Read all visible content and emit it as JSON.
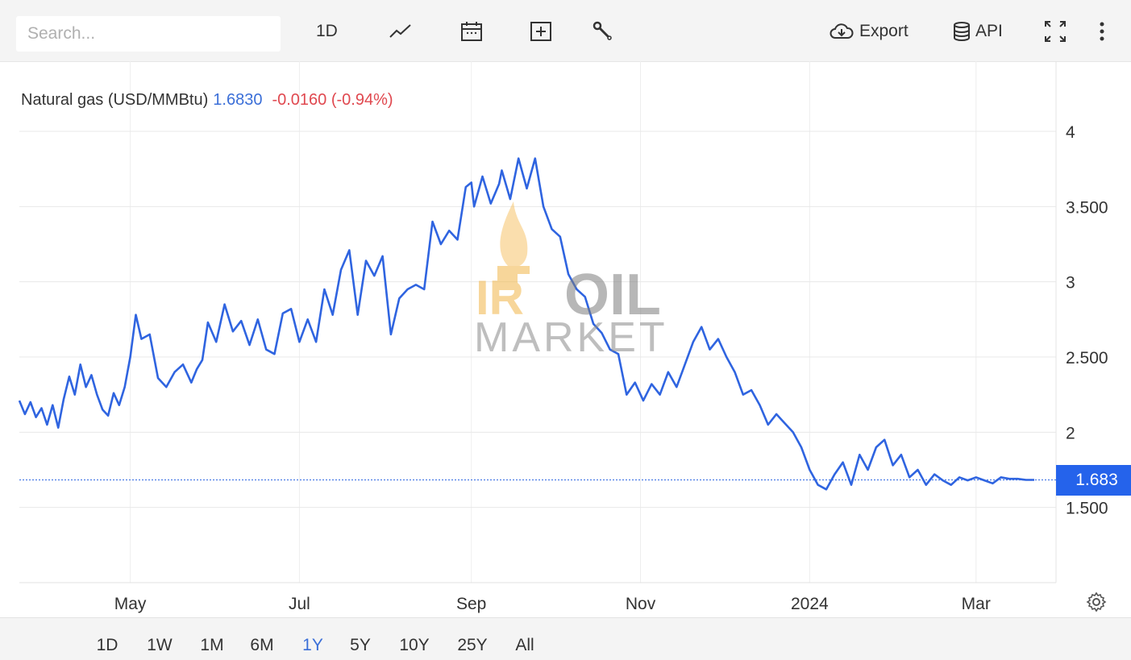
{
  "toolbar": {
    "search_placeholder": "Search...",
    "interval_label": "1D",
    "export_label": "Export",
    "api_label": "API",
    "icons": [
      "line-chart-icon",
      "calendar-icon",
      "plus-box-icon",
      "wrench-icon",
      "cloud-download-icon",
      "database-icon",
      "fullscreen-icon",
      "more-vertical-icon"
    ]
  },
  "legend": {
    "name": "Natural gas (USD/MMBtu)",
    "value": "1.6830",
    "change": "-0.0160 (-0.94%)"
  },
  "watermark": {
    "line1": "OIL",
    "line2": "MARKET"
  },
  "last_price_badge": "1.683",
  "ranges": {
    "items": [
      "1D",
      "1W",
      "1M",
      "6M",
      "1Y",
      "5Y",
      "10Y",
      "25Y",
      "All"
    ],
    "active": "1Y"
  },
  "colors": {
    "line": "#2f64e0",
    "positive": "#3b6fd8",
    "negative": "#e0484f",
    "badge": "#2563eb"
  },
  "chart_data": {
    "type": "line",
    "title": "Natural gas (USD/MMBtu)",
    "xlabel": "",
    "ylabel": "",
    "x_tick_labels": [
      "May",
      "Jul",
      "Sep",
      "Nov",
      "2024",
      "Mar"
    ],
    "y_tick_labels": [
      "1.500",
      "2",
      "2.500",
      "3",
      "3.500",
      "4"
    ],
    "y_ticks": [
      1.5,
      2,
      2.5,
      3,
      3.5,
      4
    ],
    "ylim": [
      1.0,
      4.0
    ],
    "xlim": [
      "2023-03-22",
      "2024-03-22"
    ],
    "grid": true,
    "last_value": 1.683,
    "series": [
      {
        "name": "Natural gas (USD/MMBtu)",
        "x": [
          "2023-03-22",
          "2023-03-24",
          "2023-03-26",
          "2023-03-28",
          "2023-03-30",
          "2023-04-01",
          "2023-04-03",
          "2023-04-05",
          "2023-04-07",
          "2023-04-09",
          "2023-04-11",
          "2023-04-13",
          "2023-04-15",
          "2023-04-17",
          "2023-04-19",
          "2023-04-21",
          "2023-04-23",
          "2023-04-25",
          "2023-04-27",
          "2023-04-29",
          "2023-05-01",
          "2023-05-03",
          "2023-05-05",
          "2023-05-08",
          "2023-05-11",
          "2023-05-14",
          "2023-05-17",
          "2023-05-20",
          "2023-05-23",
          "2023-05-25",
          "2023-05-27",
          "2023-05-29",
          "2023-06-01",
          "2023-06-04",
          "2023-06-07",
          "2023-06-10",
          "2023-06-13",
          "2023-06-16",
          "2023-06-19",
          "2023-06-22",
          "2023-06-25",
          "2023-06-28",
          "2023-07-01",
          "2023-07-04",
          "2023-07-07",
          "2023-07-10",
          "2023-07-13",
          "2023-07-16",
          "2023-07-19",
          "2023-07-22",
          "2023-07-25",
          "2023-07-28",
          "2023-07-31",
          "2023-08-03",
          "2023-08-06",
          "2023-08-09",
          "2023-08-12",
          "2023-08-15",
          "2023-08-18",
          "2023-08-21",
          "2023-08-24",
          "2023-08-27",
          "2023-08-30",
          "2023-09-01",
          "2023-09-02",
          "2023-09-05",
          "2023-09-08",
          "2023-09-11",
          "2023-09-12",
          "2023-09-15",
          "2023-09-18",
          "2023-09-21",
          "2023-09-24",
          "2023-09-27",
          "2023-09-30",
          "2023-10-03",
          "2023-10-06",
          "2023-10-09",
          "2023-10-12",
          "2023-10-15",
          "2023-10-18",
          "2023-10-21",
          "2023-10-24",
          "2023-10-27",
          "2023-10-30",
          "2023-11-02",
          "2023-11-05",
          "2023-11-08",
          "2023-11-11",
          "2023-11-14",
          "2023-11-17",
          "2023-11-20",
          "2023-11-23",
          "2023-11-26",
          "2023-11-29",
          "2023-12-02",
          "2023-12-05",
          "2023-12-08",
          "2023-12-11",
          "2023-12-14",
          "2023-12-17",
          "2023-12-20",
          "2023-12-23",
          "2023-12-26",
          "2023-12-29",
          "2024-01-01",
          "2024-01-04",
          "2024-01-07",
          "2024-01-10",
          "2024-01-13",
          "2024-01-16",
          "2024-01-19",
          "2024-01-22",
          "2024-01-25",
          "2024-01-28",
          "2024-01-31",
          "2024-02-03",
          "2024-02-06",
          "2024-02-09",
          "2024-02-12",
          "2024-02-15",
          "2024-02-18",
          "2024-02-21",
          "2024-02-24",
          "2024-02-27",
          "2024-03-01",
          "2024-03-04",
          "2024-03-07",
          "2024-03-10",
          "2024-03-13",
          "2024-03-16",
          "2024-03-19",
          "2024-03-22"
        ],
        "values": [
          2.21,
          2.12,
          2.2,
          2.1,
          2.16,
          2.05,
          2.18,
          2.03,
          2.22,
          2.37,
          2.25,
          2.45,
          2.3,
          2.38,
          2.25,
          2.15,
          2.11,
          2.26,
          2.18,
          2.3,
          2.5,
          2.78,
          2.62,
          2.65,
          2.36,
          2.3,
          2.4,
          2.45,
          2.33,
          2.42,
          2.48,
          2.73,
          2.6,
          2.85,
          2.67,
          2.74,
          2.58,
          2.75,
          2.55,
          2.52,
          2.79,
          2.82,
          2.6,
          2.75,
          2.6,
          2.95,
          2.78,
          3.08,
          3.21,
          2.78,
          3.14,
          3.04,
          3.17,
          2.65,
          2.89,
          2.95,
          2.98,
          2.95,
          3.4,
          3.25,
          3.34,
          3.28,
          3.63,
          3.66,
          3.5,
          3.7,
          3.52,
          3.65,
          3.74,
          3.55,
          3.82,
          3.62,
          3.82,
          3.5,
          3.35,
          3.3,
          3.05,
          2.95,
          2.9,
          2.72,
          2.66,
          2.55,
          2.52,
          2.25,
          2.33,
          2.21,
          2.32,
          2.25,
          2.4,
          2.3,
          2.45,
          2.6,
          2.7,
          2.55,
          2.62,
          2.5,
          2.4,
          2.25,
          2.28,
          2.18,
          2.05,
          2.12,
          2.06,
          2.0,
          1.9,
          1.75,
          1.65,
          1.62,
          1.72,
          1.8,
          1.65,
          1.85,
          1.75,
          1.9,
          1.95,
          1.78,
          1.85,
          1.7,
          1.75,
          1.65,
          1.72,
          1.68,
          1.65,
          1.7,
          1.68,
          1.7,
          1.68,
          1.66,
          1.7,
          1.69,
          1.69,
          1.683,
          1.683
        ]
      }
    ]
  }
}
